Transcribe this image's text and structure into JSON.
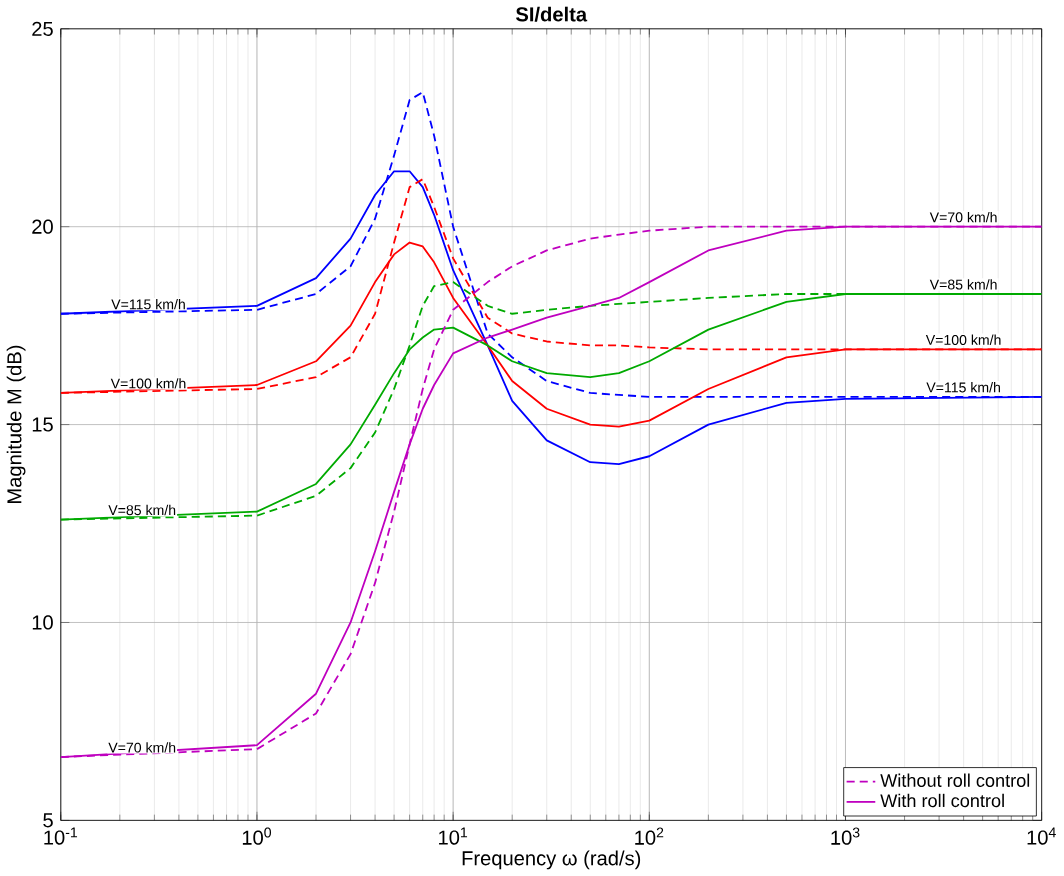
{
  "chart_data": {
    "type": "line",
    "title": "SI/delta",
    "xlabel": "Frequency ω (rad/s)",
    "ylabel": "Magnitude M (dB)",
    "log": "x",
    "xlim": [
      0.1,
      10000
    ],
    "ylim": [
      5,
      25
    ],
    "xticks": [
      {
        "value": 0.1,
        "label": "10$^{-1}$"
      },
      {
        "value": 1,
        "label": "10$^{0}$"
      },
      {
        "value": 10,
        "label": "10$^{1}$"
      },
      {
        "value": 100,
        "label": "10$^{2}$"
      },
      {
        "value": 1000,
        "label": "10$^{3}$"
      },
      {
        "value": 10000,
        "label": "10$^{4}$"
      }
    ],
    "yticks": [
      5,
      10,
      15,
      20,
      25
    ],
    "grid": true,
    "legend": "bottom right",
    "x": [
      0.1,
      1,
      2,
      3,
      4,
      5,
      6,
      7,
      8,
      10,
      15,
      20,
      30,
      50,
      70,
      100,
      200,
      500,
      1000,
      10000
    ],
    "series": [
      {
        "color": "#0000ff",
        "line_style": "solid",
        "values": [
          17.8,
          18.0,
          18.7,
          19.7,
          20.8,
          21.4,
          21.4,
          21.0,
          20.3,
          18.9,
          17.0,
          15.6,
          14.6,
          14.05,
          14.0,
          14.2,
          15.0,
          15.55,
          15.65,
          15.7
        ]
      },
      {
        "color": "#0000ff",
        "line_style": "dashed",
        "values": [
          17.8,
          17.9,
          18.3,
          19.0,
          20.2,
          21.8,
          23.2,
          23.4,
          22.3,
          20.0,
          17.3,
          16.7,
          16.1,
          15.8,
          15.75,
          15.7,
          15.7,
          15.7,
          15.7,
          15.7
        ]
      },
      {
        "color": "#ff0000",
        "line_style": "solid",
        "values": [
          15.8,
          16.0,
          16.6,
          17.5,
          18.6,
          19.3,
          19.6,
          19.5,
          19.1,
          18.2,
          17.0,
          16.1,
          15.4,
          15.0,
          14.95,
          15.1,
          15.9,
          16.7,
          16.9,
          16.9
        ]
      },
      {
        "color": "#ff0000",
        "line_style": "dashed",
        "values": [
          15.8,
          15.9,
          16.2,
          16.7,
          17.8,
          19.6,
          21.0,
          21.2,
          20.5,
          19.2,
          17.7,
          17.3,
          17.1,
          17.0,
          17.0,
          16.95,
          16.9,
          16.9,
          16.9,
          16.9
        ]
      },
      {
        "color": "#00aa00",
        "line_style": "solid",
        "values": [
          12.6,
          12.8,
          13.5,
          14.5,
          15.5,
          16.3,
          16.9,
          17.2,
          17.4,
          17.45,
          17.0,
          16.6,
          16.3,
          16.2,
          16.3,
          16.6,
          17.4,
          18.1,
          18.3,
          18.3
        ]
      },
      {
        "color": "#00aa00",
        "line_style": "dashed",
        "values": [
          12.6,
          12.7,
          13.2,
          13.9,
          14.8,
          15.9,
          17.0,
          18.0,
          18.5,
          18.6,
          18.0,
          17.8,
          17.9,
          18.0,
          18.05,
          18.1,
          18.2,
          18.3,
          18.3,
          18.3
        ]
      },
      {
        "name": "Without roll control",
        "color": "#bf00bf",
        "line_style": "dashed",
        "values": [
          6.6,
          6.8,
          7.7,
          9.2,
          11.0,
          12.8,
          14.5,
          15.9,
          16.9,
          17.9,
          18.6,
          19.0,
          19.4,
          19.7,
          19.8,
          19.9,
          20.0,
          20.0,
          20.0,
          20.0
        ]
      },
      {
        "name": "With roll control",
        "color": "#bf00bf",
        "line_style": "solid",
        "values": [
          6.6,
          6.9,
          8.2,
          10.0,
          11.8,
          13.3,
          14.5,
          15.4,
          16.0,
          16.8,
          17.2,
          17.4,
          17.7,
          18.0,
          18.2,
          18.6,
          19.4,
          19.9,
          20.0,
          20.0
        ]
      }
    ],
    "annotations": [
      {
        "text": "V=115 km/h",
        "x": 0.28,
        "y": 17.8
      },
      {
        "text": "V=100 km/h",
        "x": 0.28,
        "y": 15.8
      },
      {
        "text": "V=85 km/h",
        "x": 0.26,
        "y": 12.6
      },
      {
        "text": "V=70 km/h",
        "x": 0.26,
        "y": 6.6
      },
      {
        "text": "V=70 km/h",
        "x": 4000,
        "y": 20.0
      },
      {
        "text": "V=85 km/h",
        "x": 4000,
        "y": 18.3
      },
      {
        "text": "V=100 km/h",
        "x": 4000,
        "y": 16.9
      },
      {
        "text": "V=115 km/h",
        "x": 4000,
        "y": 15.7
      }
    ]
  }
}
